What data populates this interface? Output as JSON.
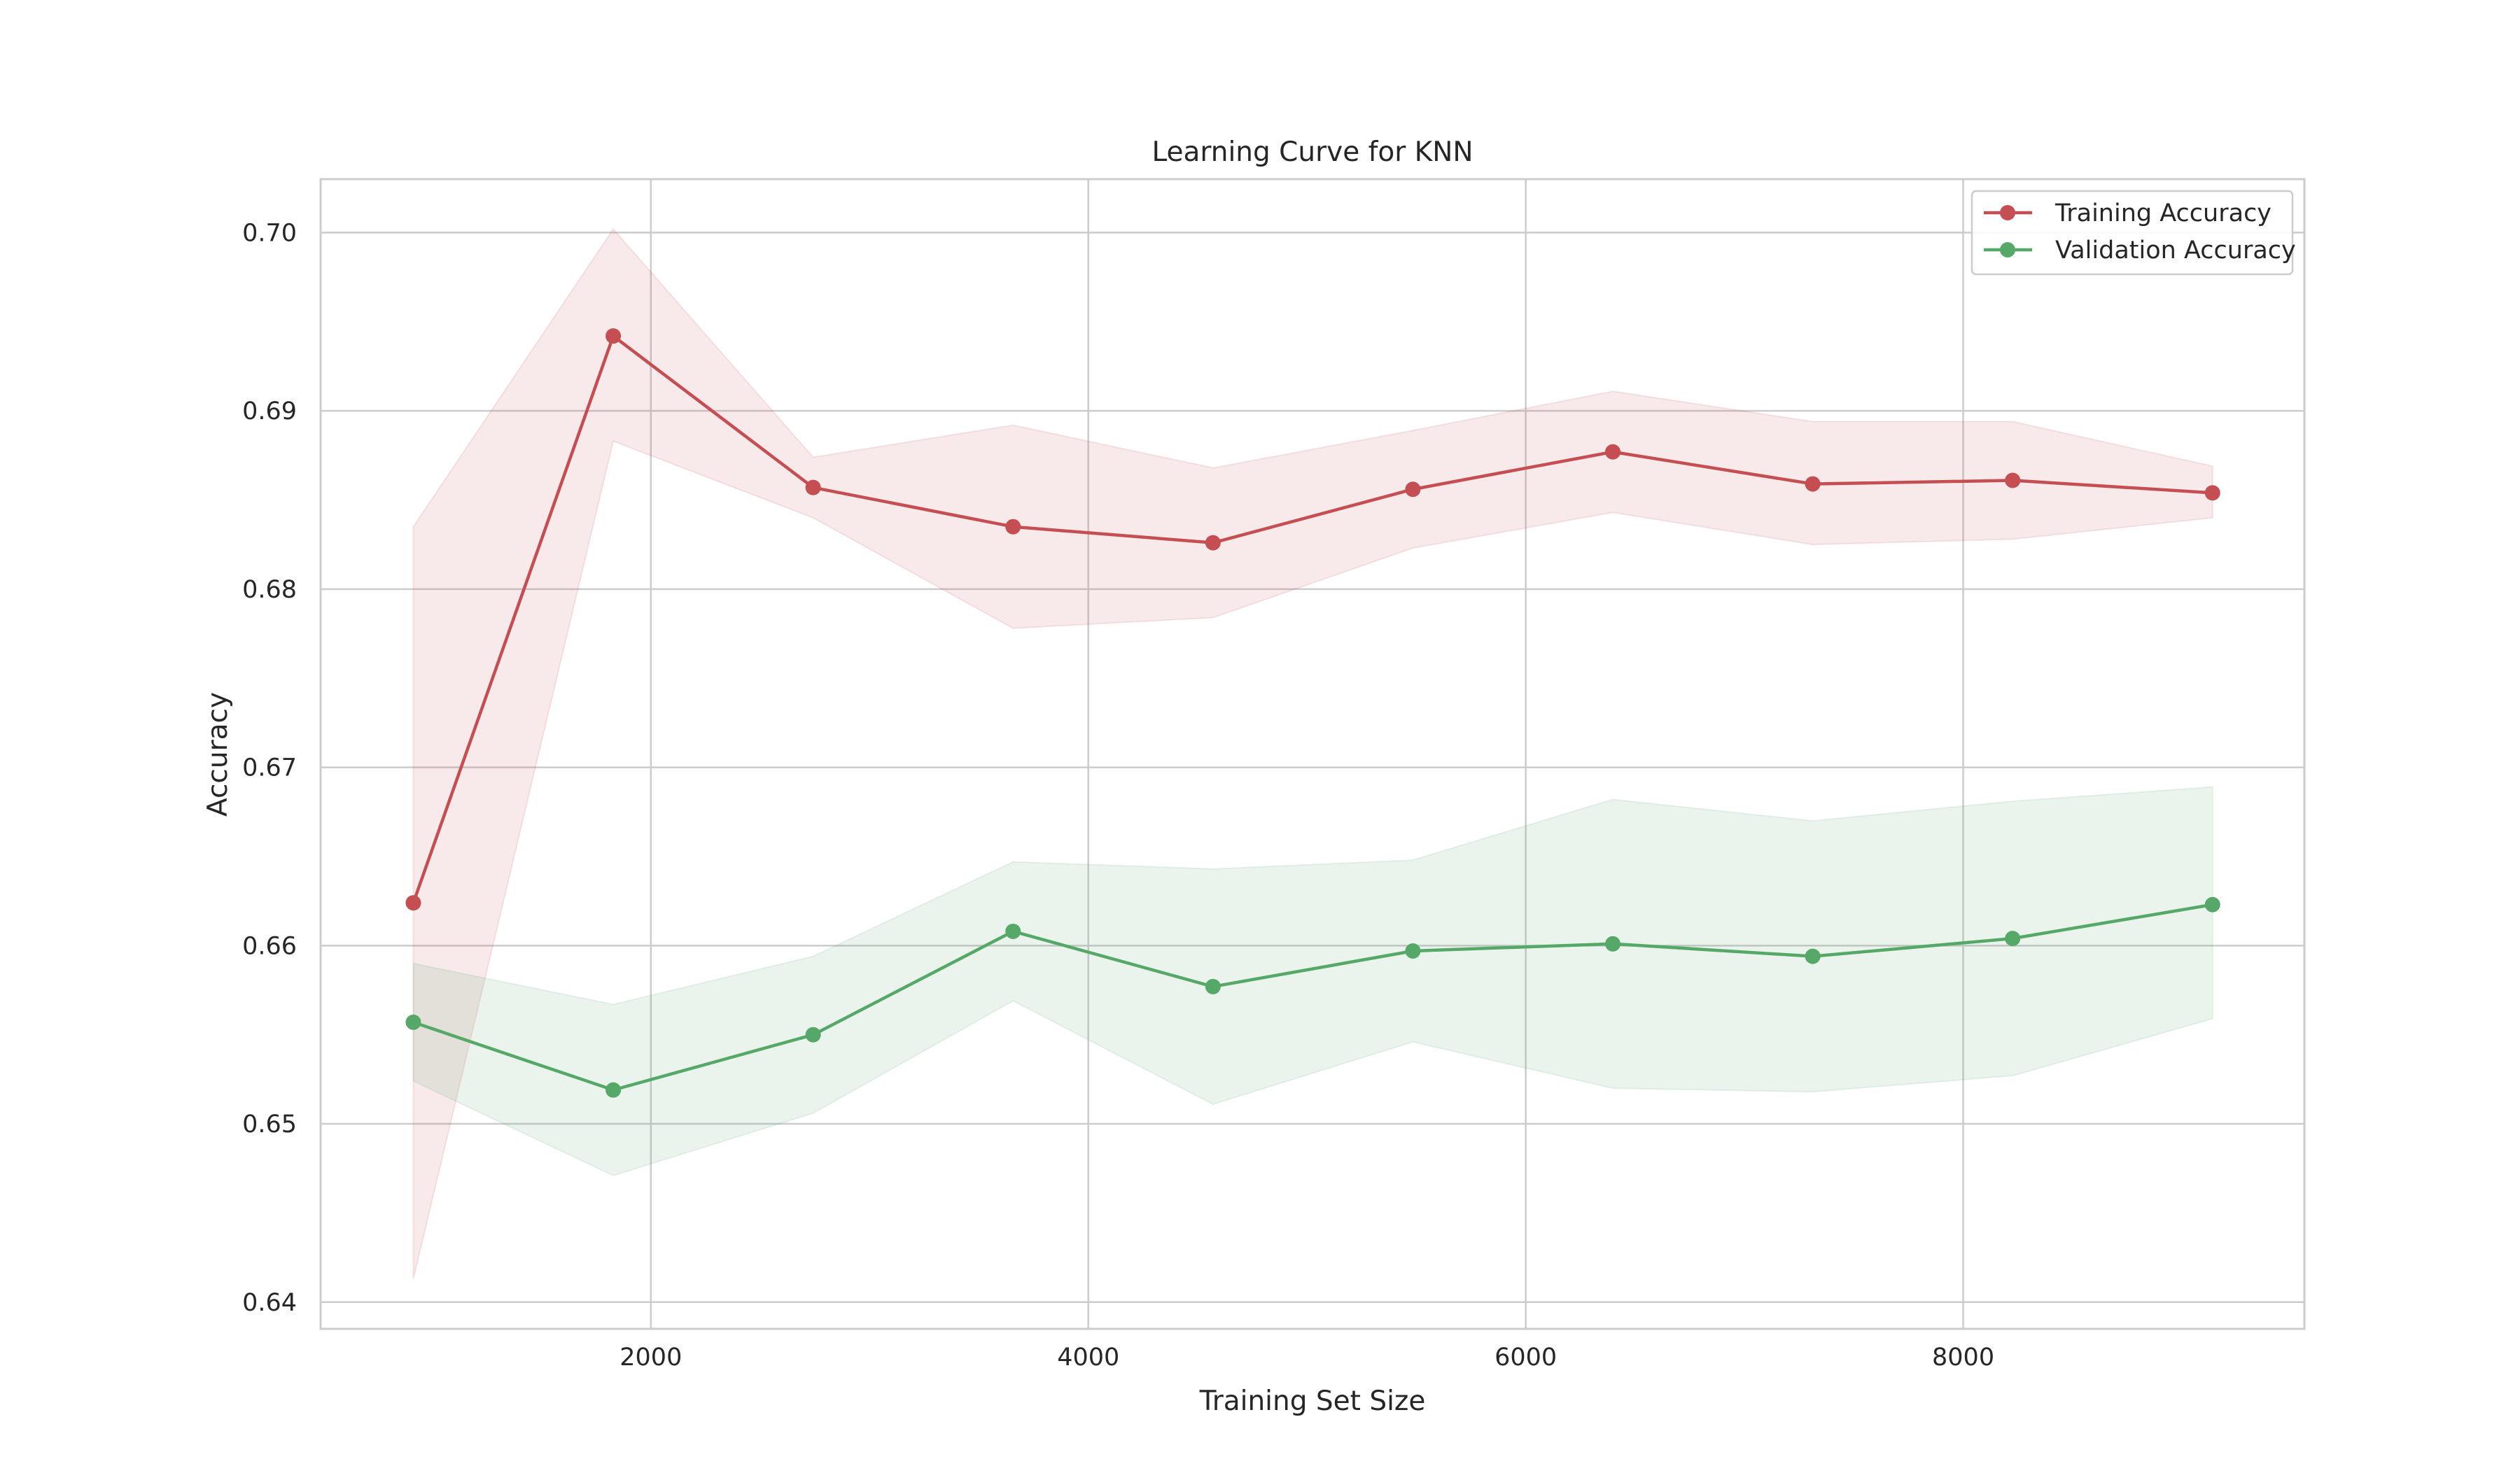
{
  "chart_data": {
    "type": "line",
    "title": "Learning Curve for KNN",
    "xlabel": "Training Set Size",
    "ylabel": "Accuracy",
    "xlim": [
      490,
      9560
    ],
    "ylim": [
      0.6385,
      0.703
    ],
    "xticks": [
      2000,
      4000,
      6000,
      8000
    ],
    "yticks": [
      0.64,
      0.65,
      0.66,
      0.67,
      0.68,
      0.69,
      0.7
    ],
    "ytick_labels": [
      "0.64",
      "0.65",
      "0.66",
      "0.67",
      "0.68",
      "0.69",
      "0.70"
    ],
    "grid": true,
    "legend_position": "top-right",
    "x": [
      914,
      1828,
      2742,
      3656,
      4570,
      5484,
      6398,
      7312,
      8226,
      9140
    ],
    "series": [
      {
        "name": "Training Accuracy",
        "color": "#c44e52",
        "values": [
          0.6624,
          0.6942,
          0.6857,
          0.6835,
          0.6826,
          0.6856,
          0.6877,
          0.6859,
          0.6861,
          0.6854
        ],
        "band_upper": [
          0.6835,
          0.7002,
          0.6874,
          0.6892,
          0.6868,
          0.6889,
          0.6911,
          0.6894,
          0.6894,
          0.6869
        ],
        "band_lower": [
          0.6413,
          0.6883,
          0.684,
          0.6778,
          0.6784,
          0.6823,
          0.6843,
          0.6825,
          0.6828,
          0.684
        ]
      },
      {
        "name": "Validation Accuracy",
        "color": "#55a868",
        "values": [
          0.6557,
          0.6519,
          0.655,
          0.6608,
          0.6577,
          0.6597,
          0.6601,
          0.6594,
          0.6604,
          0.6623
        ],
        "band_upper": [
          0.659,
          0.6567,
          0.6594,
          0.6647,
          0.6643,
          0.6648,
          0.6682,
          0.667,
          0.6681,
          0.6689
        ],
        "band_lower": [
          0.6524,
          0.6471,
          0.6506,
          0.6569,
          0.6511,
          0.6546,
          0.652,
          0.6518,
          0.6527,
          0.6559
        ]
      }
    ]
  }
}
